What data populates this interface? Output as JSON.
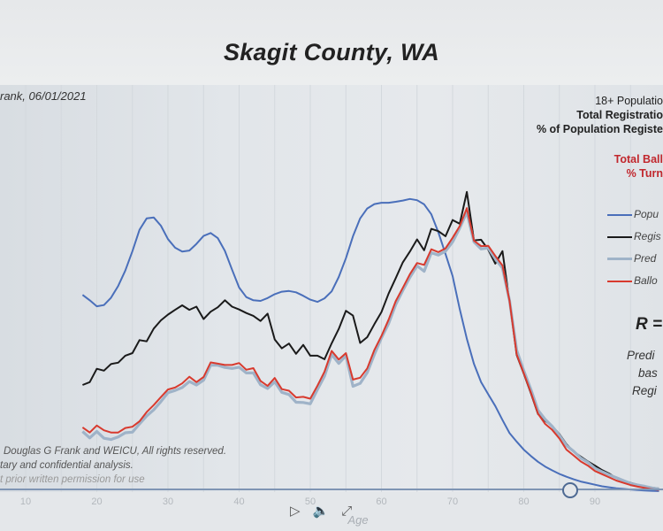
{
  "title": "Skagit County, WA",
  "byline": "rank, 06/01/2021",
  "stats": {
    "line1": "18+ Populatio",
    "line2": "Total Registratio",
    "line3": "% of Population Registe",
    "line4": "Total Ball",
    "line5": "% Turn"
  },
  "legend": [
    {
      "label": "Popu",
      "color": "#4a6fba"
    },
    {
      "label": "Regis",
      "color": "#1a1a1a"
    },
    {
      "label": "Pred",
      "color": "#9fb3c8"
    },
    {
      "label": "Ballo",
      "color": "#d83a2e"
    }
  ],
  "r_label": "R =",
  "note_lines": [
    "Predi",
    "bas",
    "Regi"
  ],
  "copyright": {
    "line1": "Douglas G Frank and WEICU, All rights reserved.",
    "line2": "tary and confidential analysis.",
    "line3": "t prior written permission for use"
  },
  "controls": {
    "play": "▷",
    "volume": "🔈",
    "expand": "⤢"
  },
  "chart_data": {
    "type": "line",
    "xlabel": "Age",
    "x_ticks": [
      10,
      20,
      30,
      40,
      50,
      60,
      70,
      80,
      90
    ],
    "xlim": [
      7,
      99
    ],
    "ylim": [
      0,
      100
    ],
    "grid": true,
    "x": [
      18,
      19,
      20,
      21,
      22,
      23,
      24,
      25,
      26,
      27,
      28,
      29,
      30,
      31,
      32,
      33,
      34,
      35,
      36,
      37,
      38,
      39,
      40,
      41,
      42,
      43,
      44,
      45,
      46,
      47,
      48,
      49,
      50,
      51,
      52,
      53,
      54,
      55,
      56,
      57,
      58,
      59,
      60,
      61,
      62,
      63,
      64,
      65,
      66,
      67,
      68,
      69,
      70,
      71,
      72,
      73,
      74,
      75,
      76,
      77,
      78,
      79,
      80,
      81,
      82,
      83,
      84,
      85,
      86,
      87,
      88,
      89,
      90,
      91,
      92,
      93,
      94,
      95,
      96,
      97,
      98,
      99
    ],
    "series": [
      {
        "name": "Popu",
        "color": "#4a6fba",
        "values": [
          61.9,
          60.2,
          58.3,
          58.7,
          61.0,
          64.7,
          69.5,
          75.6,
          82.3,
          85.9,
          86.2,
          83.6,
          79.4,
          76.7,
          75.5,
          75.8,
          77.9,
          80.4,
          81.3,
          79.7,
          75.7,
          69.8,
          64.2,
          61.2,
          60.2,
          60.0,
          60.9,
          62.1,
          62.9,
          63.1,
          62.7,
          61.6,
          60.4,
          59.7,
          60.8,
          63.0,
          67.5,
          73.4,
          80.3,
          85.9,
          89.0,
          90.4,
          90.8,
          90.8,
          91.1,
          91.5,
          92.0,
          91.6,
          90.3,
          87.2,
          81.5,
          74.7,
          67.8,
          57.4,
          48.1,
          40.2,
          34.5,
          30.7,
          27.0,
          22.6,
          18.5,
          15.8,
          13.3,
          11.3,
          9.5,
          8.0,
          6.8,
          5.7,
          4.8,
          4.0,
          3.3,
          2.8,
          2.3,
          1.8,
          1.5,
          1.2,
          1.0,
          0.8,
          0.6,
          0.5,
          0.4,
          0.3
        ]
      },
      {
        "name": "Regis",
        "color": "#1a1a1a",
        "values": [
          33.6,
          34.5,
          38.7,
          38.1,
          40.2,
          40.6,
          42.8,
          43.6,
          47.7,
          47.3,
          51.3,
          53.9,
          55.7,
          57.2,
          58.6,
          57.2,
          58.2,
          54.3,
          56.6,
          58.0,
          60.2,
          58.2,
          57.3,
          56.2,
          55.3,
          53.7,
          56.0,
          47.9,
          45.1,
          46.6,
          43.4,
          46.2,
          42.8,
          42.8,
          41.7,
          46.7,
          51.2,
          56.9,
          55.4,
          46.8,
          48.6,
          52.7,
          56.5,
          62.3,
          67.1,
          72.1,
          75.5,
          79.3,
          75.9,
          82.6,
          81.9,
          80.3,
          85.4,
          84.2,
          94.2,
          79.0,
          79.2,
          76.1,
          71.7,
          75.6,
          59.7,
          43.0,
          37.2,
          31.0,
          24.5,
          22.4,
          20.7,
          18.2,
          15.0,
          12.7,
          11.1,
          9.6,
          8.3,
          6.9,
          5.8,
          4.4,
          3.6,
          2.9,
          2.3,
          1.8,
          1.4,
          1.1
        ]
      },
      {
        "name": "Pred",
        "color": "#9fb3c8",
        "values": [
          19.0,
          17.0,
          19.0,
          16.9,
          16.5,
          17.3,
          18.6,
          18.8,
          21.4,
          23.9,
          25.8,
          28.4,
          31.2,
          31.9,
          32.8,
          34.7,
          33.6,
          35.1,
          39.8,
          39.8,
          39.1,
          38.8,
          39.2,
          37.4,
          37.4,
          33.7,
          32.5,
          34.6,
          31.3,
          30.6,
          28.2,
          28.1,
          27.7,
          32.2,
          36.4,
          43.2,
          40.4,
          42.8,
          33.2,
          34.1,
          37.5,
          43.2,
          48.4,
          52.9,
          58.8,
          63.3,
          67.4,
          71.0,
          69.3,
          75.1,
          74.4,
          75.6,
          78.5,
          82.9,
          87.8,
          78.5,
          76.3,
          76.6,
          73.2,
          70.3,
          60.1,
          44.5,
          38.1,
          32.2,
          25.7,
          22.8,
          20.6,
          17.8,
          14.6,
          12.8,
          10.7,
          9.3,
          7.5,
          6.4,
          5.4,
          4.5,
          3.6,
          2.7,
          2.2,
          1.8,
          1.3,
          1.0
        ]
      },
      {
        "name": "Ballo",
        "color": "#d83a2e",
        "values": [
          20.3,
          18.7,
          20.9,
          19.4,
          18.7,
          18.7,
          20.1,
          20.5,
          22.2,
          25.1,
          27.3,
          29.8,
          32.2,
          32.8,
          34.1,
          36.2,
          34.5,
          36.1,
          40.7,
          40.3,
          39.9,
          39.9,
          40.5,
          38.4,
          38.9,
          34.9,
          33.3,
          35.8,
          32.3,
          31.8,
          29.7,
          29.9,
          29.3,
          33.4,
          37.8,
          44.3,
          41.6,
          43.6,
          35.3,
          35.9,
          38.8,
          44.6,
          49.0,
          54.1,
          59.9,
          64.1,
          68.4,
          71.9,
          71.3,
          76.2,
          75.3,
          76.5,
          79.8,
          83.5,
          89.1,
          78.9,
          77.2,
          77.3,
          74.1,
          71.1,
          60.0,
          43.2,
          37.3,
          31.2,
          24.6,
          21.4,
          19.5,
          16.8,
          13.3,
          11.5,
          9.6,
          8.3,
          6.6,
          5.6,
          4.6,
          3.6,
          2.9,
          2.2,
          1.7,
          1.3,
          0.9,
          0.7
        ]
      }
    ]
  }
}
